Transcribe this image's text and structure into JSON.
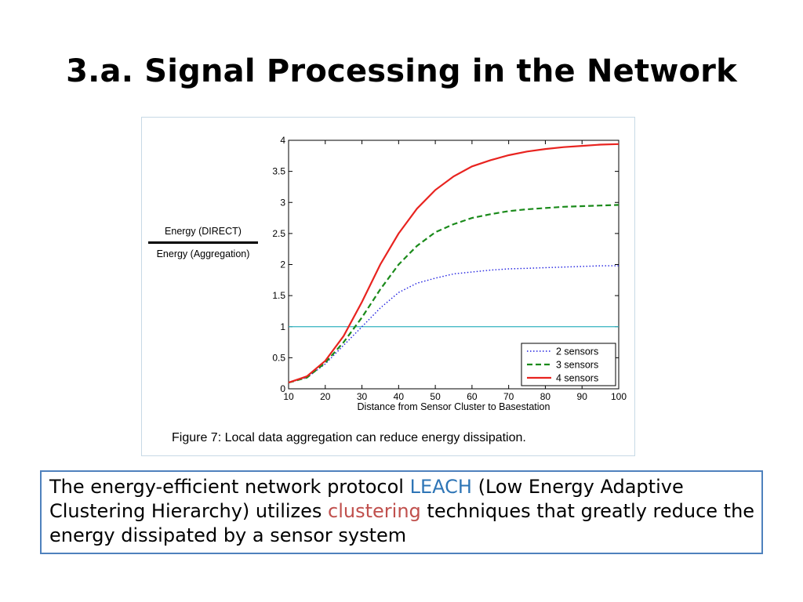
{
  "slide": {
    "title": "3.a. Signal Processing in the Network"
  },
  "figure": {
    "ratio_numerator": "Energy (DIRECT)",
    "ratio_denominator": "Energy (Aggregation)",
    "caption": "Figure 7:  Local data aggregation can reduce energy dissipation."
  },
  "chart_data": {
    "type": "line",
    "title": "",
    "xlabel": "Distance from Sensor Cluster to Basestation",
    "ylabel": "Energy (DIRECT) / Energy (Aggregation)",
    "xlim": [
      10,
      100
    ],
    "ylim": [
      0,
      4
    ],
    "x_ticks": [
      10,
      20,
      30,
      40,
      50,
      60,
      70,
      80,
      90,
      100
    ],
    "y_ticks": [
      0,
      0.5,
      1,
      1.5,
      2,
      2.5,
      3,
      3.5,
      4
    ],
    "y_tick_labels": [
      "0",
      "0.5",
      "1",
      "1.5",
      "2",
      "2.5",
      "3",
      "3.5",
      "4"
    ],
    "grid": false,
    "legend_position": "bottom-right",
    "reference_line": {
      "y": 1,
      "color": "#33b3bf"
    },
    "series": [
      {
        "name": "2 sensors",
        "color": "#2020e0",
        "style": "dotted",
        "x": [
          10,
          15,
          20,
          25,
          30,
          35,
          40,
          45,
          50,
          55,
          60,
          65,
          70,
          75,
          80,
          85,
          90,
          95,
          100
        ],
        "y": [
          0.1,
          0.18,
          0.4,
          0.7,
          1.0,
          1.3,
          1.55,
          1.7,
          1.78,
          1.85,
          1.88,
          1.91,
          1.93,
          1.94,
          1.95,
          1.96,
          1.97,
          1.98,
          1.98
        ]
      },
      {
        "name": "3 sensors",
        "color": "#1a8a1a",
        "style": "dashed",
        "x": [
          10,
          15,
          20,
          25,
          30,
          35,
          40,
          45,
          50,
          55,
          60,
          65,
          70,
          75,
          80,
          85,
          90,
          95,
          100
        ],
        "y": [
          0.1,
          0.18,
          0.42,
          0.75,
          1.15,
          1.6,
          2.0,
          2.3,
          2.52,
          2.65,
          2.75,
          2.81,
          2.86,
          2.89,
          2.91,
          2.93,
          2.94,
          2.95,
          2.96
        ]
      },
      {
        "name": "4 sensors",
        "color": "#e8231f",
        "style": "solid",
        "x": [
          10,
          15,
          20,
          25,
          30,
          35,
          40,
          45,
          50,
          55,
          60,
          65,
          70,
          75,
          80,
          85,
          90,
          95,
          100
        ],
        "y": [
          0.1,
          0.2,
          0.45,
          0.85,
          1.4,
          2.0,
          2.5,
          2.9,
          3.2,
          3.42,
          3.58,
          3.68,
          3.76,
          3.82,
          3.86,
          3.89,
          3.91,
          3.93,
          3.94
        ]
      }
    ]
  },
  "description": {
    "part1": "The energy-efficient network protocol ",
    "leach": "LEACH",
    "part2": " (Low Energy Adaptive Clustering Hierarchy) utilizes ",
    "clustering": "clustering",
    "part3": " techniques that greatly reduce the energy dissipated by a sensor system",
    "leach_color": "#2e75b6",
    "clustering_color": "#c0504d"
  }
}
